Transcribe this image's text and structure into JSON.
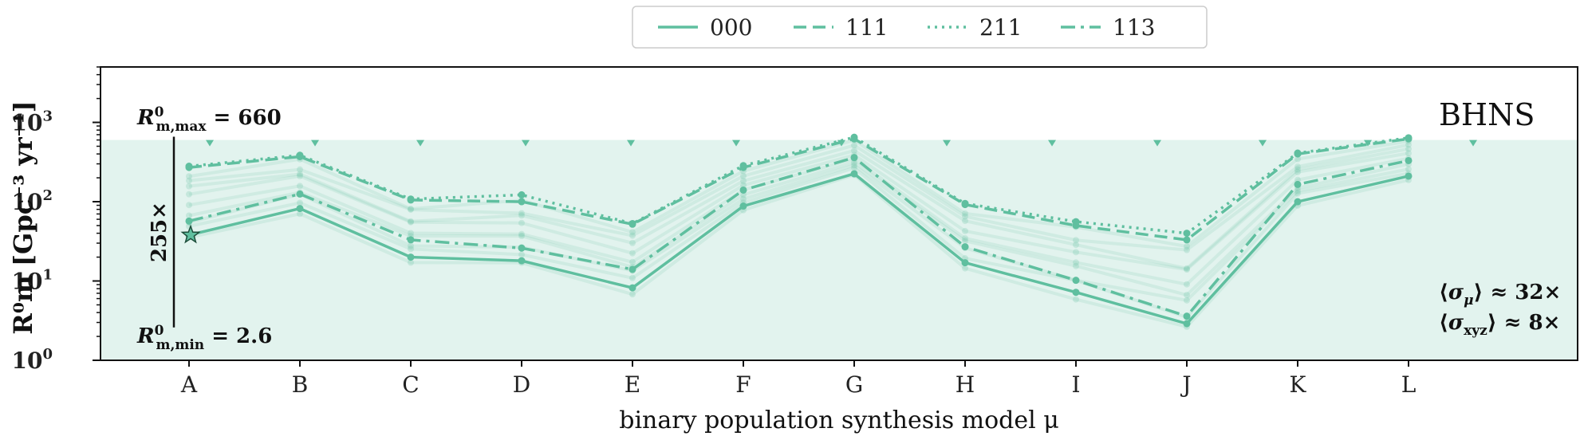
{
  "chart_data": {
    "type": "line",
    "y_scale": "log",
    "ylim": [
      1,
      5000
    ],
    "xlabel": "binary population synthesis model μ",
    "ylabel": "R⁰m [Gpc⁻³ yr⁻¹]",
    "categories": [
      "A",
      "B",
      "C",
      "D",
      "E",
      "F",
      "G",
      "H",
      "I",
      "J",
      "K",
      "L"
    ],
    "y_ticks": [
      {
        "value": 1,
        "mant": "10",
        "exp": "0"
      },
      {
        "value": 10,
        "mant": "10",
        "exp": "1"
      },
      {
        "value": 100,
        "mant": "10",
        "exp": "2"
      },
      {
        "value": 1000,
        "mant": "10",
        "exp": "3"
      }
    ],
    "series": [
      {
        "name": "000",
        "dash": "solid",
        "values": [
          38,
          82,
          20,
          18,
          8.2,
          88,
          225,
          17,
          7.2,
          2.9,
          100,
          210
        ]
      },
      {
        "name": "111",
        "dash": "dashed",
        "values": [
          270,
          370,
          105,
          100,
          52,
          270,
          620,
          92,
          50,
          33,
          400,
          620
        ]
      },
      {
        "name": "211",
        "dash": "dotted",
        "values": [
          280,
          385,
          108,
          122,
          53,
          285,
          650,
          95,
          56,
          40,
          410,
          640
        ]
      },
      {
        "name": "113",
        "dash": "dashdot",
        "values": [
          57,
          125,
          33,
          26,
          14,
          140,
          360,
          27,
          10.2,
          3.6,
          165,
          330
        ]
      }
    ],
    "band": {
      "min": 1,
      "max": 600
    },
    "max_label": {
      "prefix": "R",
      "sup": "0",
      "sub": "m,max",
      "text": " = 660"
    },
    "min_label": {
      "prefix": "R",
      "sup": "0",
      "sub": "m,min",
      "text": " = 2.6"
    },
    "range_factor": "255×",
    "range_value_max": 660,
    "range_value_min": 2.6,
    "star_value": 38,
    "title": "BHNS",
    "sigma_mu": {
      "sym": "σ",
      "sub": "μ",
      "text": " ≈ 32×"
    },
    "sigma_xyz": {
      "sym": "σ",
      "sub": "xyz",
      "text": " ≈ 8×"
    },
    "color": "#5fbf9f"
  }
}
